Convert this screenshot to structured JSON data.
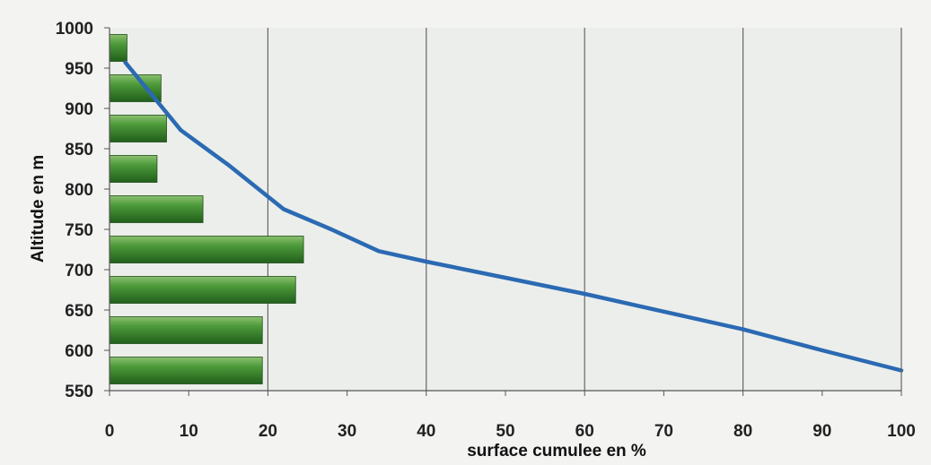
{
  "chart_data": {
    "type": "bar+line",
    "xlabel": "surface cumulee en %",
    "ylabel": "Altitude en m",
    "xlim": [
      0,
      100
    ],
    "ylim": [
      550,
      1000
    ],
    "xticks": [
      "0",
      "10",
      "20",
      "30",
      "40",
      "50",
      "60",
      "70",
      "80",
      "90",
      "100"
    ],
    "yticks": [
      "550",
      "600",
      "650",
      "700",
      "750",
      "800",
      "850",
      "900",
      "950",
      "1000"
    ],
    "grid": "vertical major lines at 0, 20, 40, 60, 80, 100",
    "bars": {
      "orientation": "horizontal",
      "color": "#3f8a2e",
      "categories_altitude": [
        975,
        925,
        875,
        825,
        775,
        725,
        675,
        625,
        575
      ],
      "values": [
        2.2,
        6.5,
        7.2,
        6.0,
        11.8,
        24.5,
        23.5,
        19.3,
        19.3
      ]
    },
    "line": {
      "color": "#2b6ab3",
      "points": [
        [
          2,
          957
        ],
        [
          9,
          873
        ],
        [
          15,
          830
        ],
        [
          22,
          775
        ],
        [
          28,
          750
        ],
        [
          34,
          723
        ],
        [
          40,
          710
        ],
        [
          50,
          690
        ],
        [
          60,
          670
        ],
        [
          70,
          648
        ],
        [
          80,
          626
        ],
        [
          90,
          600
        ],
        [
          100,
          575
        ]
      ]
    }
  }
}
